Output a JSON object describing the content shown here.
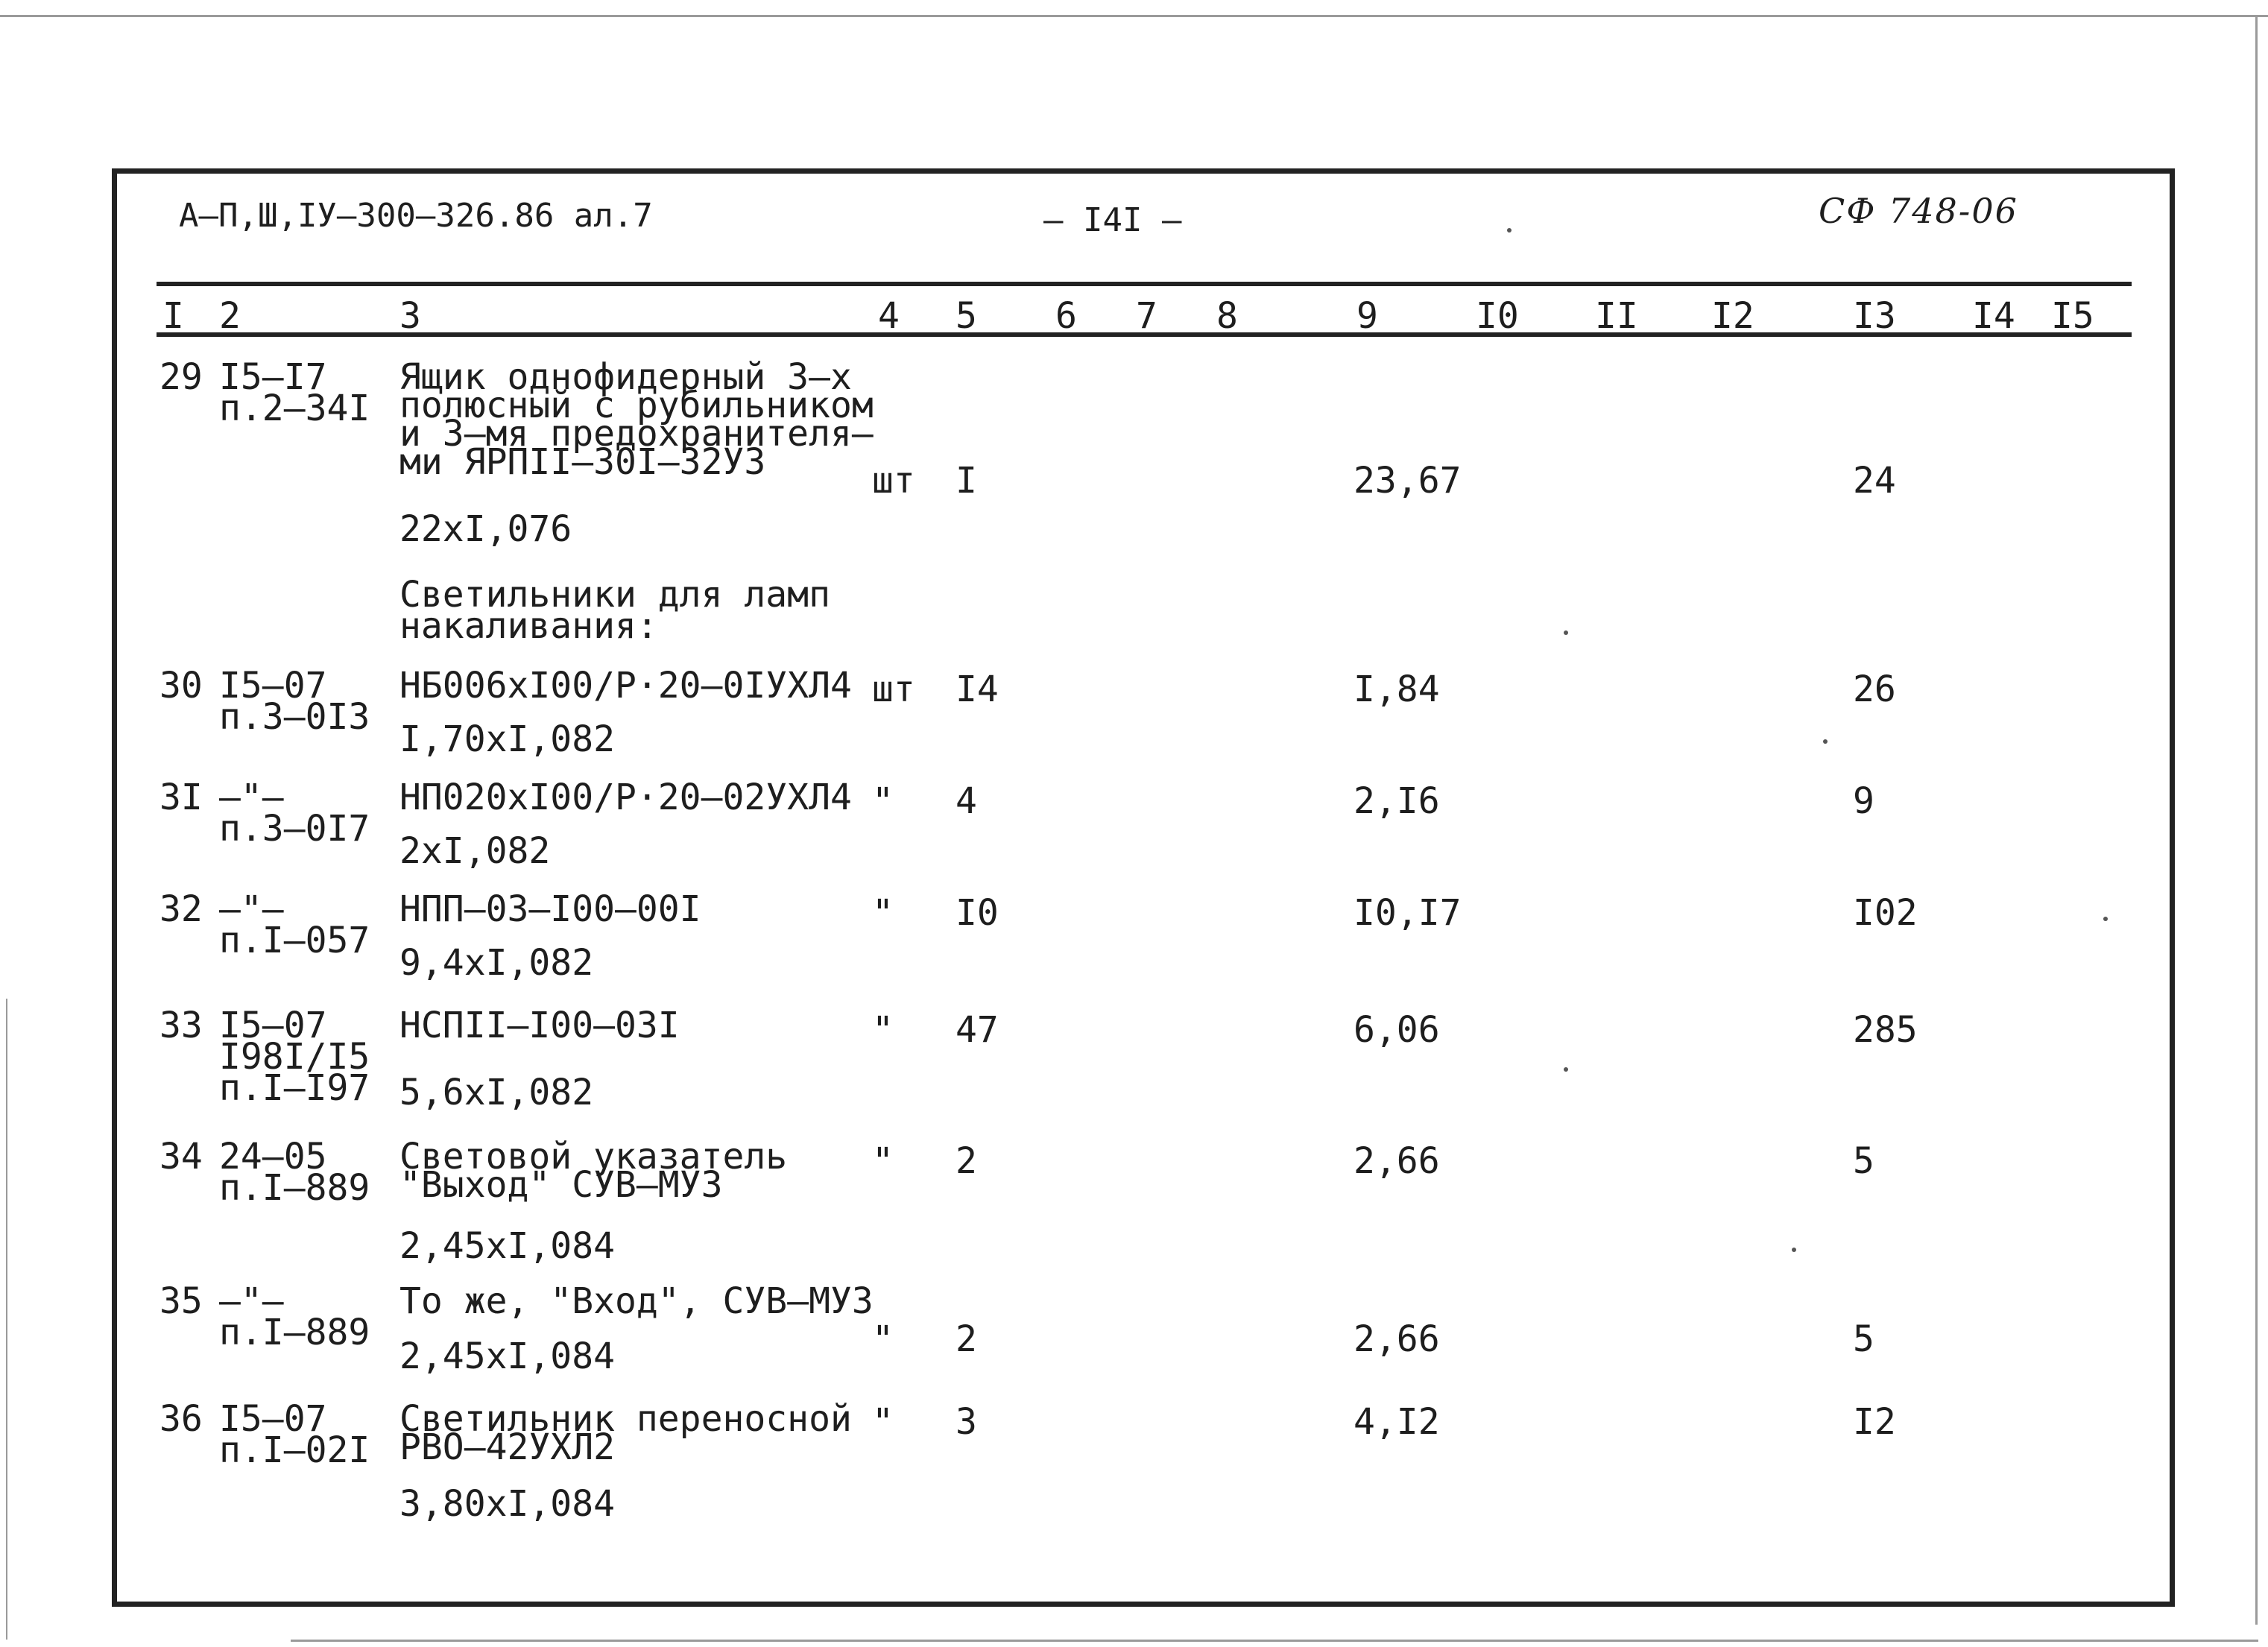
{
  "header": {
    "doc_code": "А–П,Ш,IУ–300–326.86 ал.7",
    "page_number": "– I4I –",
    "stamp": "СФ 748-06"
  },
  "columns": [
    "I",
    "2",
    "3",
    "4",
    "5",
    "6",
    "7",
    "8",
    "9",
    "I0",
    "II",
    "I2",
    "I3",
    "I4",
    "I5"
  ],
  "rows": [
    {
      "num": "29",
      "ref1": "I5–I7",
      "ref2": "п.2–34I",
      "name": [
        "Ящик однофидерный 3–х",
        "полюсный с рубильником",
        "и 3–мя предохранителя–",
        "ми ЯРПII–30I–32У3"
      ],
      "calc": "22хI,076",
      "unit": "шт",
      "qty": "I",
      "price": "23,67",
      "total": "24"
    },
    {
      "section": [
        "Светильники для ламп",
        "накаливания:"
      ]
    },
    {
      "num": "30",
      "ref1": "I5–07",
      "ref2": "п.3–0I3",
      "name": [
        "НБ006хI00/Р·20–0IУХЛ4"
      ],
      "calc": "I,70хI,082",
      "unit": "шт",
      "qty": "I4",
      "price": "I,84",
      "total": "26"
    },
    {
      "num": "3I",
      "ref1": "–\"–",
      "ref2": "п.3–0I7",
      "name": [
        "НП020хI00/Р·20–02УХЛ4"
      ],
      "calc": "2хI,082",
      "unit": "\"",
      "qty": "4",
      "price": "2,I6",
      "total": "9"
    },
    {
      "num": "32",
      "ref1": "–\"–",
      "ref2": "п.I–057",
      "name": [
        "НПП–03–I00–00I"
      ],
      "calc": "9,4хI,082",
      "unit": "\"",
      "qty": "I0",
      "price": "I0,I7",
      "total": "I02"
    },
    {
      "num": "33",
      "ref1": "I5–07",
      "ref2": "I98I/I5",
      "ref3": "п.I–I97",
      "name": [
        "НСПII–I00–03I"
      ],
      "calc": "5,6хI,082",
      "unit": "\"",
      "qty": "47",
      "price": "6,06",
      "total": "285"
    },
    {
      "num": "34",
      "ref1": "24–05",
      "ref2": "п.I–889",
      "name": [
        "Световой указатель",
        "\"Выход\" СУВ–МУЗ"
      ],
      "calc": "2,45хI,084",
      "unit": "\"",
      "qty": "2",
      "price": "2,66",
      "total": "5"
    },
    {
      "num": "35",
      "ref1": "–\"–",
      "ref2": "п.I–889",
      "name": [
        "То же, \"Вход\", СУВ–МУЗ"
      ],
      "calc": "2,45хI,084",
      "unit": "\"",
      "qty": "2",
      "price": "2,66",
      "total": "5"
    },
    {
      "num": "36",
      "ref1": "I5–07",
      "ref2": "п.I–02I",
      "name": [
        "Светильник переносной",
        "РВО–42УХЛ2"
      ],
      "calc": "3,80хI,084",
      "unit": "\"",
      "qty": "3",
      "price": "4,I2",
      "total": "I2"
    }
  ]
}
